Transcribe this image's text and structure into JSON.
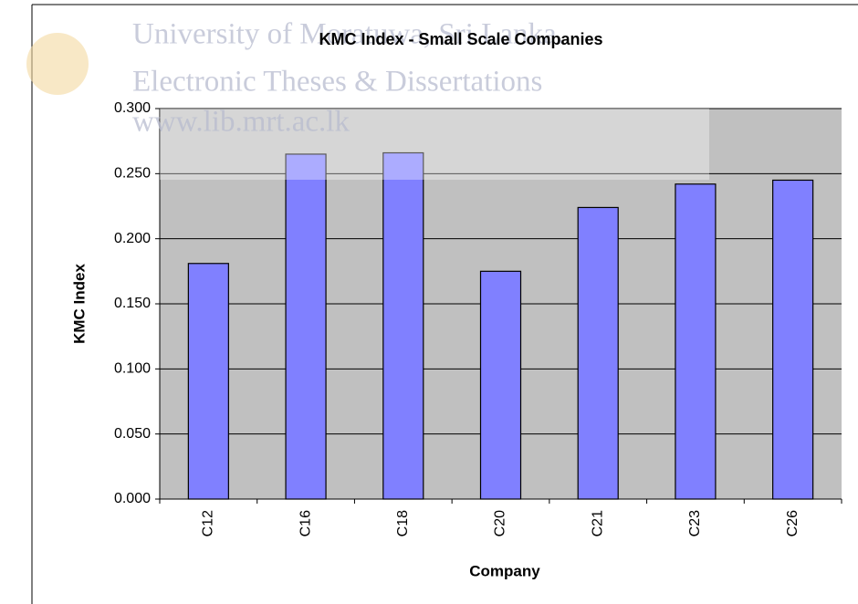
{
  "chart_data": {
    "type": "bar",
    "title": "KMC Index - Small Scale Companies",
    "watermark": [
      "University of Moratuwa, Sri Lanka.",
      "Electronic Theses & Dissertations",
      "www.lib.mrt.ac.lk"
    ],
    "x_label": "Company",
    "y_label": "KMC Index",
    "categories": [
      "C12",
      "C16",
      "C18",
      "C20",
      "C21",
      "C23",
      "C26"
    ],
    "values": [
      0.181,
      0.265,
      0.266,
      0.175,
      0.224,
      0.242,
      0.245
    ],
    "color": "#8080ff",
    "ylim": [
      0,
      0.3
    ],
    "yticks": [
      {
        "value": 0,
        "label": "0.000"
      },
      {
        "value": 0.05,
        "label": "0.050"
      },
      {
        "value": 0.1,
        "label": "0.100"
      },
      {
        "value": 0.15,
        "label": "0.150"
      },
      {
        "value": 0.2,
        "label": "0.200"
      },
      {
        "value": 0.25,
        "label": "0.250"
      },
      {
        "value": 0.3,
        "label": "0.300"
      }
    ],
    "grid": true
  }
}
